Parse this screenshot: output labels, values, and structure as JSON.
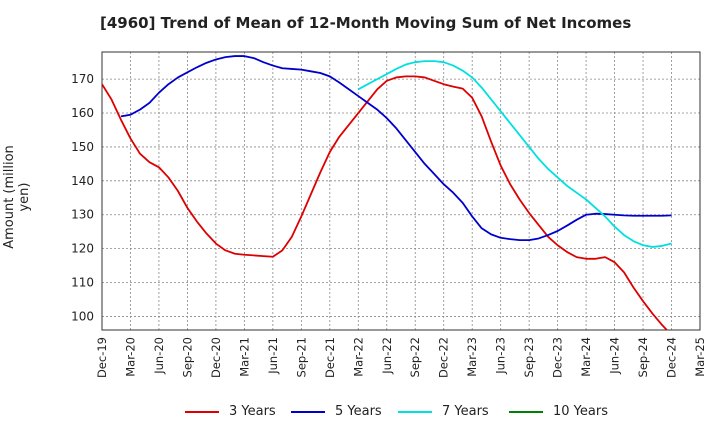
{
  "chart_data": {
    "type": "line",
    "title": "[4960]  Trend of Mean of 12-Month Moving Sum of Net Incomes",
    "xlabel": "",
    "ylabel": "Amount (million yen)",
    "ylim": [
      96,
      178
    ],
    "yticks": [
      100,
      110,
      120,
      130,
      140,
      150,
      160,
      170
    ],
    "x_tick_labels": [
      "Dec-19",
      "Mar-20",
      "Jun-20",
      "Sep-20",
      "Dec-20",
      "Mar-21",
      "Jun-21",
      "Sep-21",
      "Dec-21",
      "Mar-22",
      "Jun-22",
      "Sep-22",
      "Dec-22",
      "Mar-23",
      "Jun-23",
      "Sep-23",
      "Dec-23",
      "Mar-24",
      "Jun-24",
      "Sep-24",
      "Dec-24",
      "Mar-25"
    ],
    "grid": true,
    "legend_position": "bottom",
    "series": [
      {
        "name": "3 Years",
        "color": "#dd0000",
        "x": [
          "Dec-19",
          "Jan-20",
          "Feb-20",
          "Mar-20",
          "Apr-20",
          "May-20",
          "Jun-20",
          "Jul-20",
          "Aug-20",
          "Sep-20",
          "Oct-20",
          "Nov-20",
          "Dec-20",
          "Jan-21",
          "Feb-21",
          "Mar-21",
          "Apr-21",
          "May-21",
          "Jun-21",
          "Jul-21",
          "Aug-21",
          "Sep-21",
          "Oct-21",
          "Nov-21",
          "Dec-21",
          "Jan-22",
          "Feb-22",
          "Mar-22",
          "Apr-22",
          "May-22",
          "Jun-22",
          "Jul-22",
          "Aug-22",
          "Sep-22",
          "Oct-22",
          "Nov-22",
          "Dec-22",
          "Jan-23",
          "Feb-23",
          "Mar-23",
          "Apr-23",
          "May-23",
          "Jun-23",
          "Jul-23",
          "Aug-23",
          "Sep-23",
          "Oct-23",
          "Nov-23",
          "Dec-23",
          "Jan-24",
          "Feb-24",
          "Mar-24",
          "Apr-24",
          "May-24",
          "Jun-24",
          "Jul-24",
          "Aug-24",
          "Sep-24",
          "Oct-24",
          "Nov-24",
          "Dec-24"
        ],
        "values": [
          168.5,
          164,
          158,
          152.5,
          148,
          145.5,
          144,
          141,
          137,
          132,
          128,
          124.5,
          121.5,
          119.5,
          118.5,
          118.2,
          118,
          117.8,
          117.6,
          119.5,
          123.5,
          129.5,
          136,
          142.5,
          148.5,
          153,
          156.5,
          160,
          163.5,
          167,
          169.5,
          170.5,
          170.8,
          170.8,
          170.5,
          169.5,
          168.5,
          167.8,
          167.2,
          164.5,
          159,
          151.5,
          144.5,
          139,
          134.5,
          130.5,
          127,
          123.5,
          121,
          119,
          117.5,
          117,
          117,
          117.5,
          116,
          113,
          108.5,
          104.5,
          100.8,
          97.5,
          94.5
        ]
      },
      {
        "name": "5 Years",
        "color": "#0000cc",
        "x": [
          "Feb-20",
          "Mar-20",
          "Apr-20",
          "May-20",
          "Jun-20",
          "Jul-20",
          "Aug-20",
          "Sep-20",
          "Oct-20",
          "Nov-20",
          "Dec-20",
          "Jan-21",
          "Feb-21",
          "Mar-21",
          "Apr-21",
          "May-21",
          "Jun-21",
          "Jul-21",
          "Aug-21",
          "Sep-21",
          "Oct-21",
          "Nov-21",
          "Dec-21",
          "Jan-22",
          "Feb-22",
          "Mar-22",
          "Apr-22",
          "May-22",
          "Jun-22",
          "Jul-22",
          "Aug-22",
          "Sep-22",
          "Oct-22",
          "Nov-22",
          "Dec-22",
          "Jan-23",
          "Feb-23",
          "Mar-23",
          "Apr-23",
          "May-23",
          "Jun-23",
          "Jul-23",
          "Aug-23",
          "Sep-23",
          "Oct-23",
          "Nov-23",
          "Dec-23",
          "Jan-24",
          "Feb-24",
          "Mar-24",
          "Apr-24",
          "May-24",
          "Jun-24",
          "Jul-24",
          "Aug-24",
          "Sep-24",
          "Oct-24",
          "Nov-24",
          "Dec-24"
        ],
        "values": [
          159,
          159.5,
          161,
          163,
          166,
          168.5,
          170.5,
          172,
          173.5,
          174.8,
          175.8,
          176.5,
          176.8,
          176.8,
          176.2,
          175,
          174,
          173.2,
          173,
          172.8,
          172.3,
          171.8,
          170.8,
          169,
          167,
          165,
          163,
          161,
          158.5,
          155.5,
          152,
          148.5,
          145,
          142,
          139,
          136.5,
          133.5,
          129.5,
          126,
          124.2,
          123.2,
          122.8,
          122.5,
          122.5,
          123,
          124,
          125.2,
          126.8,
          128.5,
          130,
          130.3,
          130.2,
          130,
          129.8,
          129.7,
          129.7,
          129.7,
          129.7,
          129.8
        ]
      },
      {
        "name": "7 Years",
        "color": "#00e0e0",
        "x": [
          "Mar-22",
          "Apr-22",
          "May-22",
          "Jun-22",
          "Jul-22",
          "Aug-22",
          "Sep-22",
          "Oct-22",
          "Nov-22",
          "Dec-22",
          "Jan-23",
          "Feb-23",
          "Mar-23",
          "Apr-23",
          "May-23",
          "Jun-23",
          "Jul-23",
          "Aug-23",
          "Sep-23",
          "Oct-23",
          "Nov-23",
          "Dec-23",
          "Jan-24",
          "Feb-24",
          "Mar-24",
          "Apr-24",
          "May-24",
          "Jun-24",
          "Jul-24",
          "Aug-24",
          "Sep-24",
          "Oct-24",
          "Nov-24",
          "Dec-24"
        ],
        "values": [
          167,
          168.5,
          170,
          171.5,
          173,
          174.3,
          175,
          175.3,
          175.3,
          175,
          174,
          172.5,
          170.5,
          167.5,
          164,
          160.5,
          157,
          153.5,
          150,
          146.5,
          143.5,
          141,
          138.5,
          136.5,
          134.5,
          132,
          129.5,
          126.5,
          124,
          122.2,
          121,
          120.5,
          120.8,
          121.5
        ]
      },
      {
        "name": "10 Years",
        "color": "#008000",
        "x": [],
        "values": []
      }
    ]
  }
}
